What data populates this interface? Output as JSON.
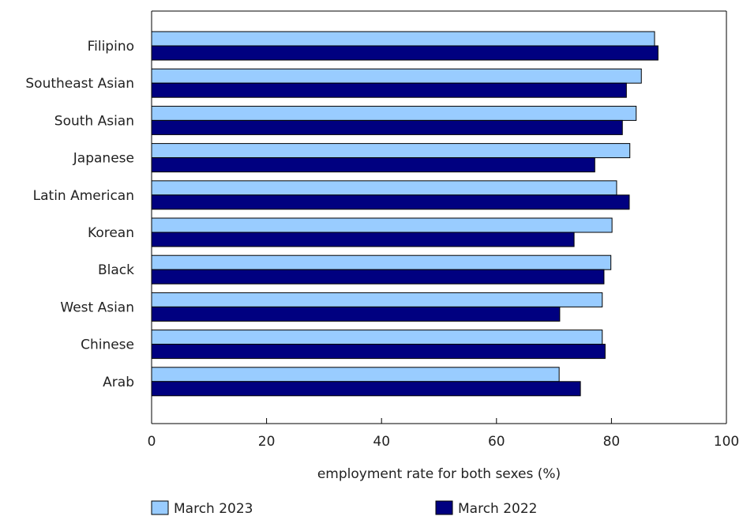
{
  "chart_data": {
    "type": "bar",
    "orientation": "horizontal",
    "categories": [
      "Filipino",
      "Southeast Asian",
      "South Asian",
      "Japanese",
      "Latin American",
      "Korean",
      "Black",
      "West Asian",
      "Chinese",
      "Arab"
    ],
    "series": [
      {
        "name": "March 2023",
        "color": "#99ccff",
        "values": [
          87.5,
          85.2,
          84.3,
          83.2,
          80.9,
          80.1,
          79.9,
          78.4,
          78.4,
          70.9
        ]
      },
      {
        "name": "March 2022",
        "color": "#000080",
        "values": [
          88.1,
          82.6,
          81.9,
          77.1,
          83.1,
          73.5,
          78.7,
          71.0,
          78.9,
          74.6
        ]
      }
    ],
    "xlabel": "employment rate for both sexes (%)",
    "xlim": [
      0,
      100
    ],
    "xticks": [
      "0",
      "20",
      "40",
      "60",
      "80",
      "100"
    ],
    "grid": false,
    "legend_position": "bottom"
  }
}
